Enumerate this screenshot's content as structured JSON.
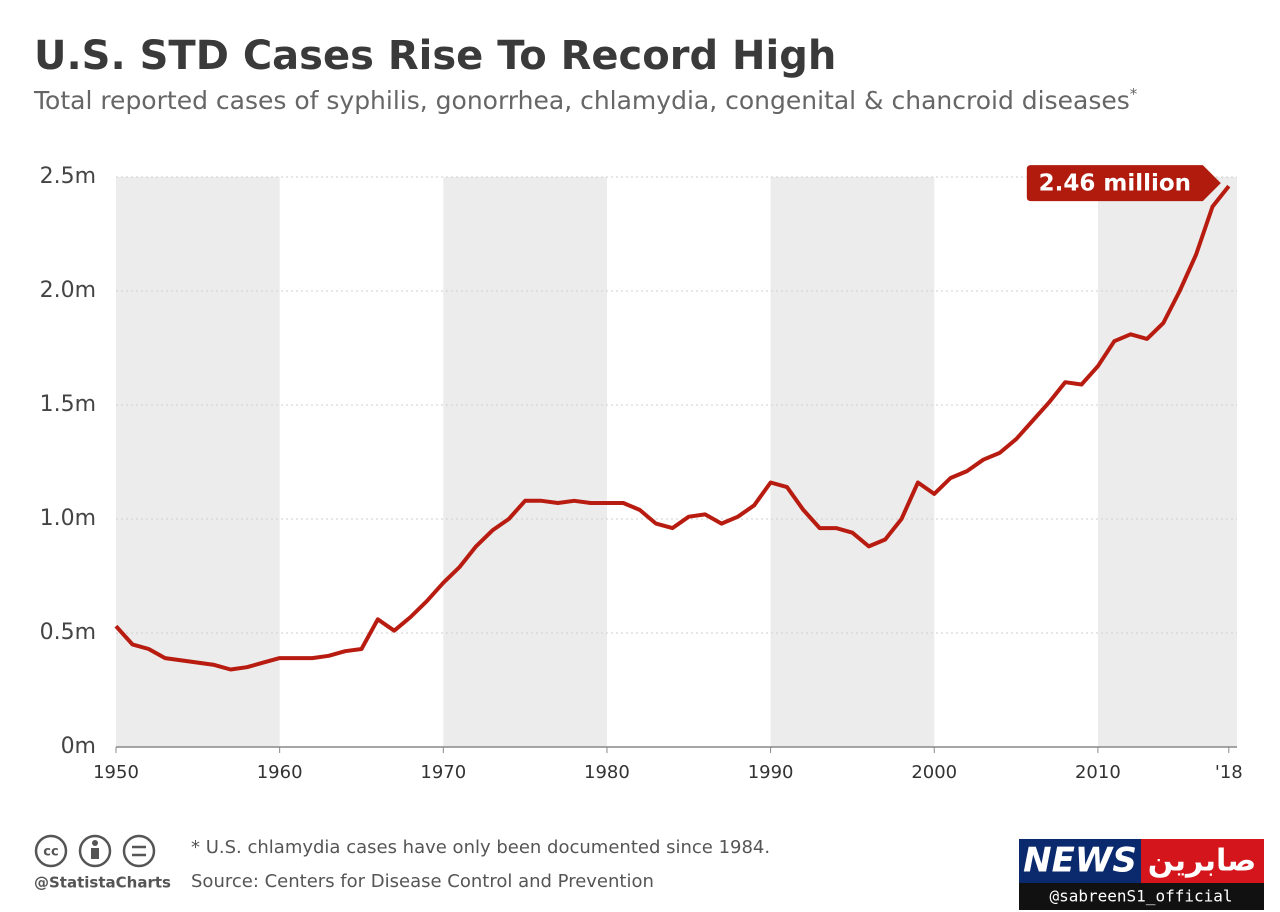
{
  "chart_data": {
    "type": "line",
    "title": "U.S. STD Cases Rise To Record High",
    "subtitle": "Total reported cases of syphilis, gonorrhea, chlamydia, congenital & chancroid diseases",
    "subtitle_marker": "*",
    "annotation": "2.46 million",
    "footnote": "* U.S. chlamydia cases have only been documented since 1984.",
    "source": "Source: Centers for Disease Control and Prevention",
    "brand": "@StatistaCharts",
    "watermark": {
      "news": "NEWS",
      "arabic": "صابرين",
      "handle": "@sabreenS1_official"
    },
    "color": "#b81c10",
    "x": [
      1950,
      1951,
      1952,
      1953,
      1954,
      1955,
      1956,
      1957,
      1958,
      1959,
      1960,
      1961,
      1962,
      1963,
      1964,
      1965,
      1966,
      1967,
      1968,
      1969,
      1970,
      1971,
      1972,
      1973,
      1974,
      1975,
      1976,
      1977,
      1978,
      1979,
      1980,
      1981,
      1982,
      1983,
      1984,
      1985,
      1986,
      1987,
      1988,
      1989,
      1990,
      1991,
      1992,
      1993,
      1994,
      1995,
      1996,
      1997,
      1998,
      1999,
      2000,
      2001,
      2002,
      2003,
      2004,
      2005,
      2006,
      2007,
      2008,
      2009,
      2010,
      2011,
      2012,
      2013,
      2014,
      2015,
      2016,
      2017,
      2018
    ],
    "values": [
      0.53,
      0.45,
      0.43,
      0.39,
      0.38,
      0.37,
      0.36,
      0.34,
      0.35,
      0.37,
      0.39,
      0.39,
      0.39,
      0.4,
      0.42,
      0.43,
      0.56,
      0.51,
      0.57,
      0.64,
      0.72,
      0.79,
      0.88,
      0.95,
      1.0,
      1.08,
      1.08,
      1.07,
      1.08,
      1.07,
      1.07,
      1.07,
      1.04,
      0.98,
      0.96,
      1.01,
      1.02,
      0.98,
      1.01,
      1.06,
      1.16,
      1.14,
      1.04,
      0.96,
      0.96,
      0.94,
      0.88,
      0.91,
      1.0,
      1.16,
      1.11,
      1.18,
      1.21,
      1.26,
      1.29,
      1.35,
      1.43,
      1.51,
      1.6,
      1.59,
      1.67,
      1.78,
      1.81,
      1.79,
      1.86,
      2.0,
      2.16,
      2.37,
      2.46
    ],
    "xlim": [
      1950,
      2018.5
    ],
    "xticks": [
      1950,
      1960,
      1970,
      1980,
      1990,
      2000,
      2010,
      {
        "value": 2018,
        "label": "'18"
      }
    ],
    "ylim": [
      0,
      2.5
    ],
    "yticks": [
      {
        "value": 0,
        "label": "0m"
      },
      {
        "value": 0.5,
        "label": "0.5m"
      },
      {
        "value": 1,
        "label": "1.0m"
      },
      {
        "value": 1.5,
        "label": "1.5m"
      },
      {
        "value": 2,
        "label": "2.0m"
      },
      {
        "value": 2.5,
        "label": "2.5m"
      }
    ],
    "grid": true
  }
}
